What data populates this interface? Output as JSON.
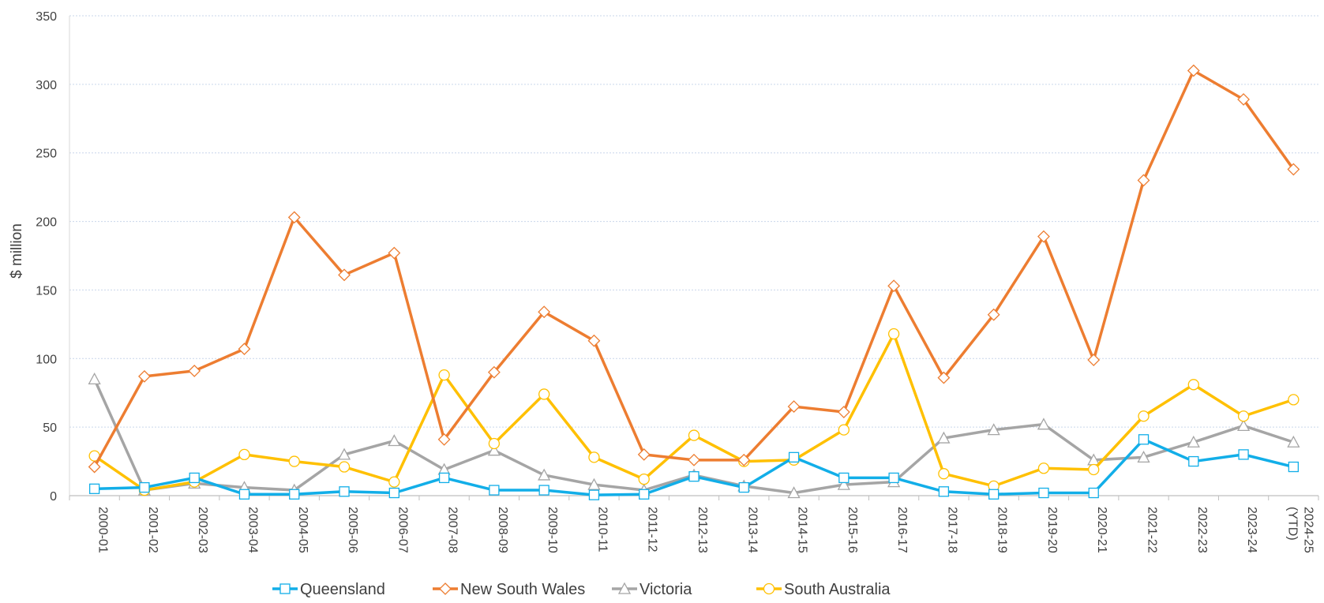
{
  "chart_data": {
    "type": "line",
    "title": "",
    "xlabel": "",
    "ylabel": "$ million",
    "ylim": [
      0,
      350
    ],
    "yticks": [
      0,
      50,
      100,
      150,
      200,
      250,
      300,
      350
    ],
    "grid": "horizontal",
    "legend_position": "bottom",
    "categories": [
      "2000-01",
      "2001-02",
      "2002-03",
      "2003-04",
      "2004-05",
      "2005-06",
      "2006-07",
      "2007-08",
      "2008-09",
      "2009-10",
      "2010-11",
      "2011-12",
      "2012-13",
      "2013-14",
      "2014-15",
      "2015-16",
      "2016-17",
      "2017-18",
      "2018-19",
      "2019-20",
      "2020-21",
      "2021-22",
      "2022-23",
      "2023-24",
      "2024-25 (YTD)"
    ],
    "series": [
      {
        "name": "Queensland",
        "color": "#12aee8",
        "marker": "square",
        "values": [
          5,
          6,
          13,
          1,
          1,
          3,
          2,
          13,
          4,
          4,
          0.5,
          1,
          14,
          6,
          28,
          13,
          13,
          3,
          1,
          2,
          2,
          41,
          25,
          30,
          21
        ]
      },
      {
        "name": "New South Wales",
        "color": "#ed7d31",
        "marker": "diamond",
        "values": [
          21,
          87,
          91,
          107,
          203,
          161,
          177,
          41,
          90,
          134,
          113,
          30,
          26,
          26,
          65,
          61,
          153,
          86,
          132,
          189,
          99,
          230,
          310,
          289,
          238
        ]
      },
      {
        "name": "Victoria",
        "color": "#a5a5a5",
        "marker": "triangle",
        "values": [
          85,
          4,
          9,
          6,
          4,
          30,
          40,
          19,
          33,
          15,
          8,
          4,
          15,
          7,
          2,
          8,
          10,
          42,
          48,
          52,
          26,
          28,
          39,
          51,
          39
        ]
      },
      {
        "name": "South Australia",
        "color": "#ffc000",
        "marker": "circle",
        "values": [
          29,
          4,
          10,
          30,
          25,
          21,
          10,
          88,
          38,
          74,
          28,
          12,
          44,
          25,
          26,
          48,
          118,
          16,
          7,
          20,
          19,
          58,
          81,
          58,
          70
        ]
      }
    ]
  }
}
